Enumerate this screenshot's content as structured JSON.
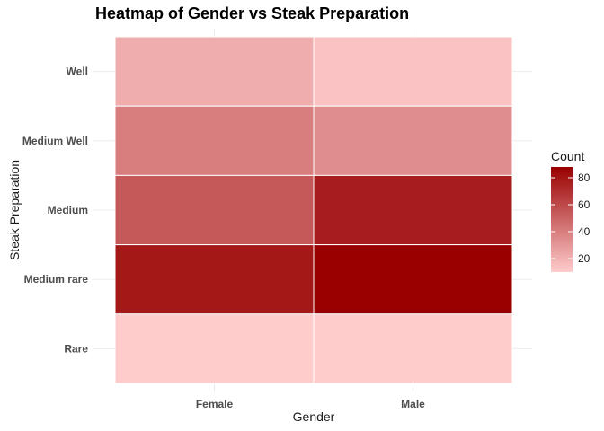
{
  "chart_data": {
    "type": "heatmap",
    "title": "Heatmap of Gender vs Steak Preparation",
    "xlabel": "Gender",
    "ylabel": "Steak Preparation",
    "x_categories": [
      "Female",
      "Male"
    ],
    "y_categories": [
      "Rare",
      "Medium rare",
      "Medium",
      "Medium Well",
      "Well"
    ],
    "cells": [
      {
        "x": "Female",
        "y": "Well",
        "value": 22
      },
      {
        "x": "Male",
        "y": "Well",
        "value": 14
      },
      {
        "x": "Female",
        "y": "Medium Well",
        "value": 40
      },
      {
        "x": "Male",
        "y": "Medium Well",
        "value": 34
      },
      {
        "x": "Female",
        "y": "Medium",
        "value": 54
      },
      {
        "x": "Male",
        "y": "Medium",
        "value": 77
      },
      {
        "x": "Female",
        "y": "Medium rare",
        "value": 79
      },
      {
        "x": "Male",
        "y": "Medium rare",
        "value": 88
      },
      {
        "x": "Female",
        "y": "Rare",
        "value": 10
      },
      {
        "x": "Male",
        "y": "Rare",
        "value": 10
      }
    ],
    "legend": {
      "title": "Count",
      "ticks": [
        20,
        40,
        60,
        80
      ],
      "range": [
        10,
        88
      ],
      "low_color": "#ffcccc",
      "high_color": "#990000"
    },
    "grid": true,
    "legend_position": "right"
  }
}
